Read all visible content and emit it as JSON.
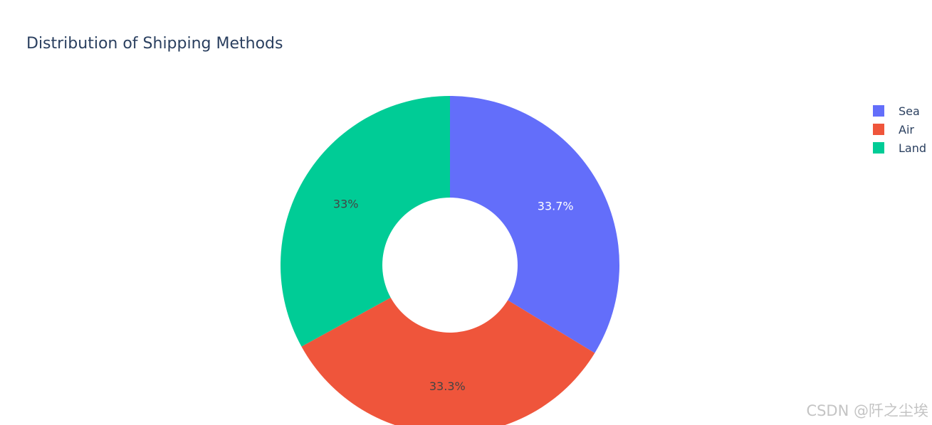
{
  "chart_data": {
    "type": "pie",
    "title": "Distribution of Shipping Methods",
    "hole": true,
    "categories": [
      "Sea",
      "Air",
      "Land"
    ],
    "values": [
      33.7,
      33.3,
      33.0
    ],
    "labels": [
      "33.7%",
      "33.3%",
      "33%"
    ],
    "colors": [
      "#636efa",
      "#ef553b",
      "#00cc96"
    ],
    "label_colors": [
      "#ffffff",
      "#444444",
      "#444444"
    ],
    "legend_placement": "top-right"
  },
  "watermark": "CSDN @阡之尘埃"
}
